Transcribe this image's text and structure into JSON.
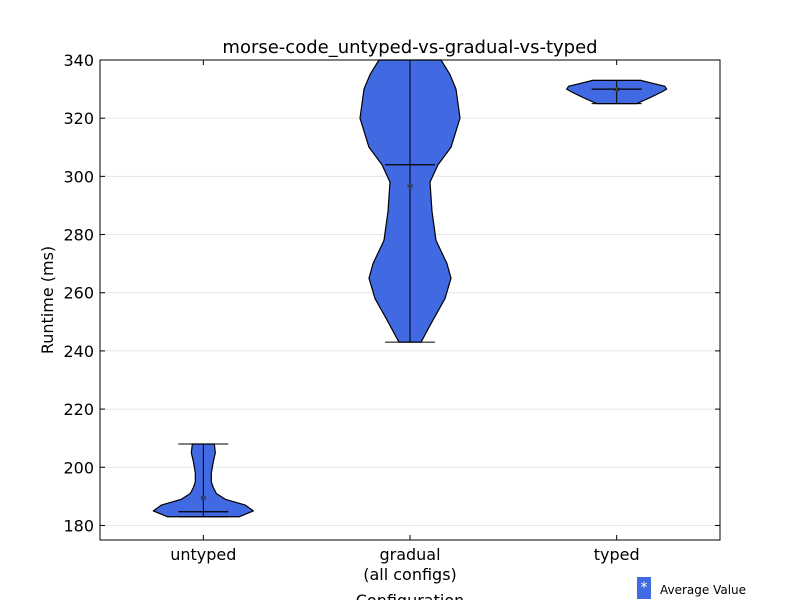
{
  "chart_data": {
    "type": "violin",
    "title": "morse-code_untyped-vs-gradual-vs-typed",
    "xlabel": "Configuration",
    "ylabel": "Runtime (ms)",
    "ylim": [
      175,
      340
    ],
    "yticks": [
      180,
      200,
      220,
      240,
      260,
      280,
      300,
      320,
      340
    ],
    "grid": "horizontal",
    "categories": [
      {
        "label": "untyped",
        "min": 183,
        "max": 208,
        "median": 184.7,
        "mean": 189.3,
        "density": [
          [
            183,
            36
          ],
          [
            185,
            50
          ],
          [
            187,
            42
          ],
          [
            189,
            22
          ],
          [
            191,
            13
          ],
          [
            193,
            10
          ],
          [
            195,
            8
          ],
          [
            198,
            8
          ],
          [
            202,
            10
          ],
          [
            205,
            12
          ],
          [
            208,
            11
          ]
        ]
      },
      {
        "label": "gradual\n(all configs)",
        "min": 243,
        "max": 340,
        "median": 304,
        "mean": 296.5,
        "density": [
          [
            243,
            11
          ],
          [
            250,
            22
          ],
          [
            258,
            35
          ],
          [
            265,
            41
          ],
          [
            270,
            37
          ],
          [
            278,
            26
          ],
          [
            288,
            22
          ],
          [
            298,
            20
          ],
          [
            304,
            28
          ],
          [
            310,
            41
          ],
          [
            320,
            50
          ],
          [
            330,
            46
          ],
          [
            335,
            40
          ],
          [
            340,
            31
          ]
        ]
      },
      {
        "label": "typed",
        "min": 325,
        "max": 333,
        "median": 330,
        "mean": 329.7,
        "density": [
          [
            325,
            20
          ],
          [
            327,
            33
          ],
          [
            329,
            45
          ],
          [
            330,
            50
          ],
          [
            331,
            48
          ],
          [
            332,
            36
          ],
          [
            333,
            24
          ]
        ]
      }
    ],
    "legend": {
      "label": "Average Value",
      "marker": "*",
      "position": "bottom-right"
    },
    "colors": {
      "violin_fill": "#4169E1",
      "violin_edge": "#000000",
      "mean_marker": "#ffffff"
    }
  }
}
